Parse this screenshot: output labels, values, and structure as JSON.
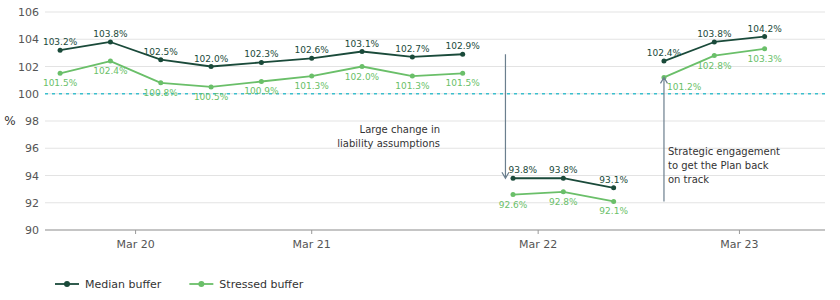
{
  "chart_data": {
    "type": "line",
    "ylabel": "%",
    "x": [
      0,
      1,
      2,
      3,
      4,
      5,
      6,
      7,
      8,
      null,
      9,
      10,
      11,
      null,
      12,
      13,
      14
    ],
    "xlim": [
      -0.3,
      15.2
    ],
    "xticks": [
      {
        "value": 1.5,
        "label": "Mar 20"
      },
      {
        "value": 5.0,
        "label": "Mar 21"
      },
      {
        "value": 9.5,
        "label": "Mar 22"
      },
      {
        "value": 13.5,
        "label": "Mar 23"
      }
    ],
    "ylim": [
      90,
      106
    ],
    "yticks": [
      90,
      92,
      94,
      96,
      98,
      100,
      102,
      104,
      106
    ],
    "grid": true,
    "legend": "bottom",
    "data_labels": true,
    "marker": "circle",
    "series": [
      {
        "name": "Median buffer",
        "color": "#1a4a3a",
        "values": [
          103.2,
          103.8,
          102.5,
          102.0,
          102.3,
          102.6,
          103.1,
          102.7,
          102.9,
          null,
          93.8,
          93.8,
          93.1,
          null,
          102.4,
          103.8,
          104.2
        ],
        "value_labels": [
          "103.2%",
          "103.8%",
          "102.5%",
          "102.0%",
          "102.3%",
          "102.6%",
          "103.1%",
          "102.7%",
          "102.9%",
          null,
          "93.8%",
          "93.8%",
          "93.1%",
          null,
          "102.4%",
          "103.8%",
          "104.2%"
        ]
      },
      {
        "name": "Stressed buffer",
        "color": "#6abf69",
        "values": [
          101.5,
          102.4,
          100.8,
          100.5,
          100.9,
          101.3,
          102.0,
          101.3,
          101.5,
          null,
          92.6,
          92.8,
          92.1,
          null,
          101.2,
          102.8,
          103.3
        ],
        "value_labels": [
          "101.5%",
          "102.4%",
          "100.8%",
          "100.5%",
          "100.9%",
          "101.3%",
          "102.0%",
          "101.3%",
          "101.5%",
          null,
          "92.6%",
          "92.8%",
          "92.1%",
          null,
          "101.2%",
          "102.8%",
          "103.3%"
        ]
      }
    ],
    "reference_lines": [
      {
        "y": 100,
        "color": "#3bbfce",
        "line_style": "dotted"
      }
    ],
    "annotations": [
      {
        "text": "Large change in\nliability assumptions",
        "x": 7.55,
        "y": 97.8,
        "arrow": {
          "x": 8.85,
          "from": 102.9,
          "to": 93.8,
          "color": "#6b7f8e"
        }
      },
      {
        "text": "Strategic engagement\nto get the Plan back\non track",
        "x": 12.08,
        "y": 96.2,
        "arrow": {
          "x": 12.0,
          "from": 92.1,
          "to": 101.2,
          "color": "#6b7f8e"
        }
      }
    ]
  }
}
